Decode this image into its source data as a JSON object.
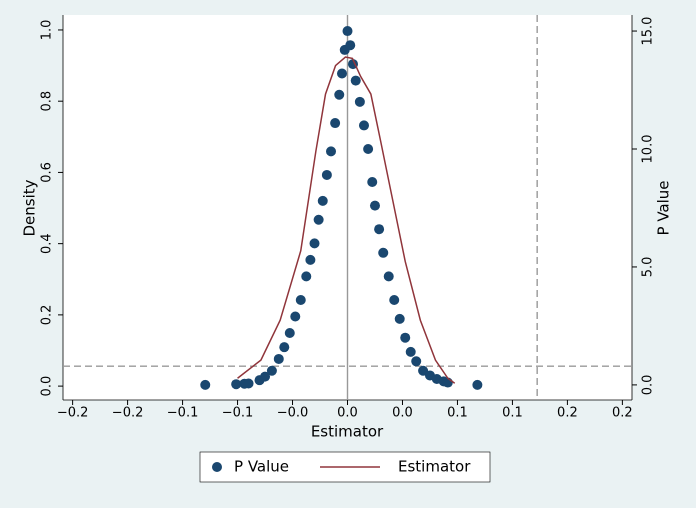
{
  "chart_data": {
    "type": "scatter-line",
    "x_label": "Estimator",
    "y_label": "Density",
    "y2_label": "P Value",
    "xlim": [
      -0.207,
      0.207
    ],
    "xticks": [
      {
        "value": -0.2,
        "label": "−0.2"
      },
      {
        "value": -0.16,
        "label": "−0.2"
      },
      {
        "value": -0.12,
        "label": "−0.1"
      },
      {
        "value": -0.08,
        "label": "−0.1"
      },
      {
        "value": -0.04,
        "label": "−0.0"
      },
      {
        "value": 0,
        "label": "0.0"
      },
      {
        "value": 0.04,
        "label": "0.0"
      },
      {
        "value": 0.08,
        "label": "0.1"
      },
      {
        "value": 0.12,
        "label": "0.1"
      },
      {
        "value": 0.16,
        "label": "0.2"
      },
      {
        "value": 0.2,
        "label": "0.2"
      }
    ],
    "ylim": [
      -0.039,
      1.042
    ],
    "yticks": [
      {
        "value": 0,
        "label": "0.0"
      },
      0.2,
      0.4,
      0.6,
      0.8,
      {
        "value": 1,
        "label": "1.0"
      }
    ],
    "y2lim": [
      -0.64,
      15.68
    ],
    "y2ticks": [
      {
        "value": 0,
        "label": "0.0"
      },
      {
        "value": 5,
        "label": "5.0"
      },
      {
        "value": 10,
        "label": "10.0"
      },
      {
        "value": 15,
        "label": "15.0"
      }
    ],
    "reference_lines": [
      {
        "axis": "x",
        "value": 0,
        "style": "solid"
      },
      {
        "axis": "x",
        "value": 0.138,
        "style": "dashed"
      },
      {
        "axis": "y",
        "value": 0.056,
        "style": "dashed"
      }
    ],
    "series": [
      {
        "name": "P Value",
        "type": "scatter",
        "axis": "y2",
        "color": "#1a476f",
        "x": [
          -0.1035,
          -0.081,
          -0.075,
          -0.072,
          -0.064,
          -0.06,
          -0.055,
          -0.05,
          -0.046,
          -0.042,
          -0.038,
          -0.034,
          -0.03,
          -0.027,
          -0.024,
          -0.021,
          -0.018,
          -0.015,
          -0.012,
          -0.009,
          -0.006,
          -0.004,
          -0.002,
          0,
          0.002,
          0.004,
          0.006,
          0.009,
          0.012,
          0.015,
          0.018,
          0.02,
          0.023,
          0.026,
          0.03,
          0.034,
          0.038,
          0.042,
          0.046,
          0.05,
          0.055,
          0.06,
          0.065,
          0.07,
          0.073,
          0.0945
        ],
        "values": [
          0.0,
          0.03,
          0.05,
          0.06,
          0.2,
          0.35,
          0.6,
          1.1,
          1.6,
          2.2,
          2.9,
          3.6,
          4.6,
          5.3,
          6.0,
          7.0,
          7.8,
          8.9,
          9.9,
          11.1,
          12.3,
          13.2,
          14.2,
          15.0,
          14.4,
          13.6,
          12.9,
          12.0,
          11.0,
          10.0,
          8.6,
          7.6,
          6.6,
          5.6,
          4.6,
          3.6,
          2.8,
          2.0,
          1.4,
          1.0,
          0.6,
          0.4,
          0.25,
          0.15,
          0.1,
          0.0
        ]
      },
      {
        "name": "Estimator",
        "type": "line",
        "color": "#90353b",
        "x": [
          -0.08,
          -0.063,
          -0.049,
          -0.034,
          -0.023,
          -0.016,
          -0.0087,
          -0.0015,
          0.0036,
          0.0095,
          0.017,
          0.024,
          0.033,
          0.042,
          0.053,
          0.064,
          0.073,
          0.078
        ],
        "values": [
          0.022,
          0.073,
          0.185,
          0.38,
          0.66,
          0.82,
          0.9,
          0.924,
          0.92,
          0.87,
          0.82,
          0.69,
          0.52,
          0.35,
          0.185,
          0.073,
          0.022,
          0.008
        ]
      }
    ]
  }
}
